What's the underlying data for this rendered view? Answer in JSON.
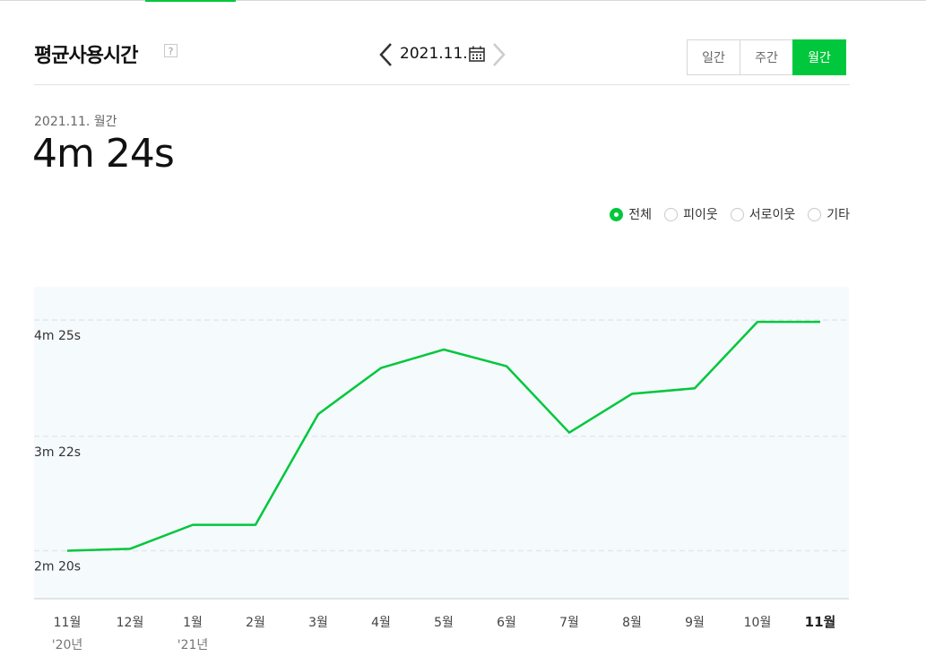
{
  "header": {
    "title": "평균사용시간",
    "help": "?",
    "date": "2021.11.",
    "periods": [
      "일간",
      "주간",
      "월간"
    ],
    "active_period": "월간"
  },
  "summary": {
    "subtitle": "2021.11. 월간",
    "value": "4m 24s"
  },
  "filters": {
    "items": [
      "전체",
      "피이웃",
      "서로이웃",
      "기타"
    ],
    "selected": "전체"
  },
  "chart_data": {
    "type": "line",
    "color": "#00c73c",
    "categories": [
      "11월",
      "12월",
      "1월",
      "2월",
      "3월",
      "4월",
      "5월",
      "6월",
      "7월",
      "8월",
      "9월",
      "10월",
      "11월"
    ],
    "year_labels": [
      "'20년",
      "",
      "'21년",
      "",
      "",
      "",
      "",
      "",
      "",
      "",
      "",
      "",
      ""
    ],
    "highlight_category_index": 12,
    "y_ticks": [
      {
        "label": "4m 25s",
        "value": 265
      },
      {
        "label": "3m 22s",
        "value": 202
      },
      {
        "label": "2m 20s",
        "value": 140
      }
    ],
    "ylim": [
      114,
      283
    ],
    "values": [
      140,
      141,
      154,
      154,
      214,
      239,
      249,
      240,
      204,
      225,
      228,
      264,
      264
    ],
    "grid": true
  }
}
